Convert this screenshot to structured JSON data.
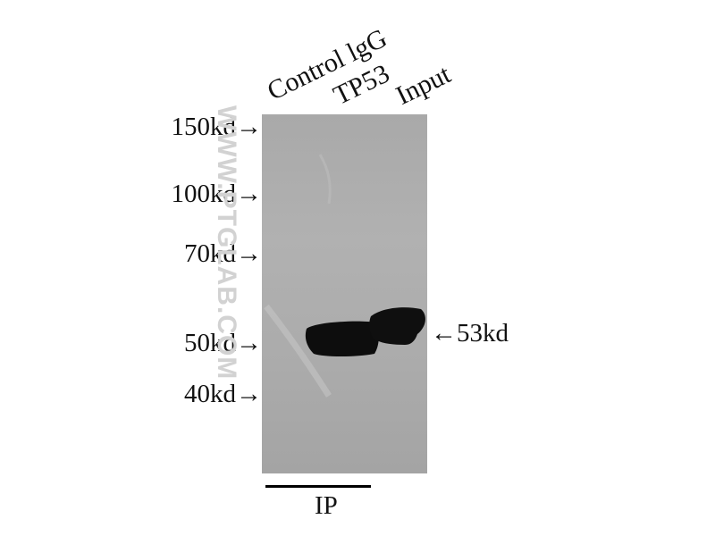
{
  "lanes": [
    {
      "label": "Control lgG"
    },
    {
      "label": "TP53"
    },
    {
      "label": "Input"
    }
  ],
  "markers": [
    {
      "label": "150kd→"
    },
    {
      "label": "100kd→"
    },
    {
      "label": "70kd→"
    },
    {
      "label": "50kd→"
    },
    {
      "label": "40kd→"
    }
  ],
  "band_label": "←53kd",
  "ip_label": "IP",
  "watermark": "WWW.PTGLAB.COM",
  "colors": {
    "membrane": "#adadad",
    "band": "#0d0d0d",
    "watermark": "#d2d2d2"
  }
}
